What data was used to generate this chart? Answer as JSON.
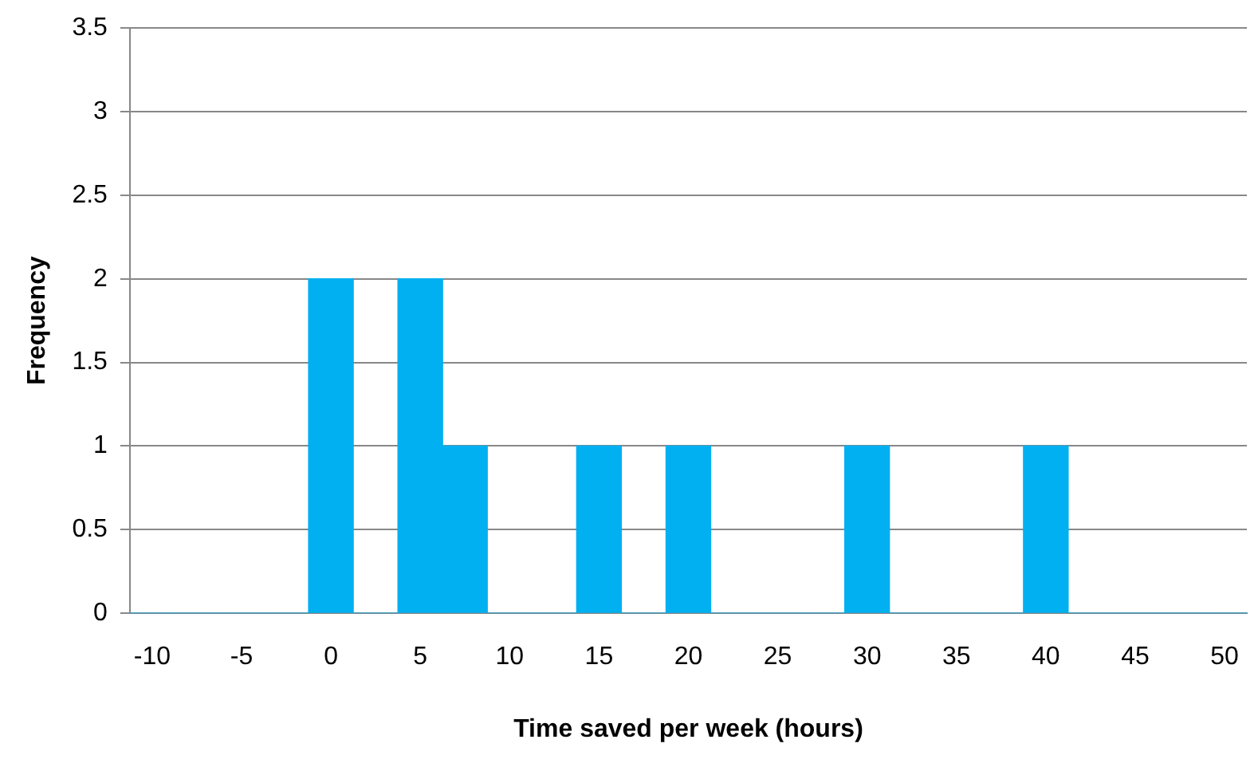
{
  "chart_data": {
    "type": "bar",
    "xlabel": "Time saved per week (hours)",
    "ylabel": "Frequency",
    "categories": [
      "-10",
      null,
      "-5",
      null,
      "0",
      null,
      "5",
      null,
      "10",
      null,
      "15",
      null,
      "20",
      null,
      "25",
      null,
      "30",
      null,
      "35",
      null,
      "40",
      null,
      "45",
      null,
      "50"
    ],
    "values": [
      0,
      0,
      0,
      0,
      2,
      0,
      2,
      1,
      0,
      0,
      1,
      0,
      1,
      0,
      0,
      0,
      1,
      0,
      0,
      0,
      1,
      0,
      0,
      0,
      0
    ],
    "color": "#00b0f0",
    "ylim": [
      0,
      3.5
    ],
    "yticks": [
      0,
      0.5,
      1,
      1.5,
      2,
      2.5,
      3,
      3.5
    ],
    "grid": "y",
    "legend": false
  }
}
